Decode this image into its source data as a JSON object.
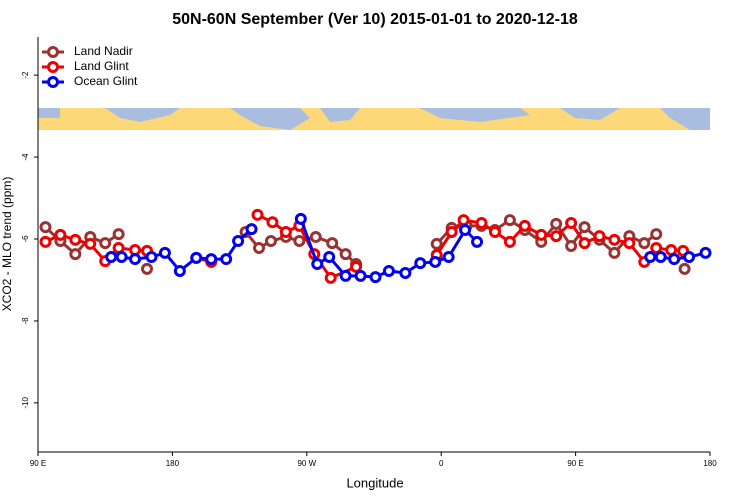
{
  "chart_data": {
    "type": "line",
    "title": "50N-60N September (Ver 10)   2015-01-01 to 2020-12-18",
    "x_label": "Longitude",
    "y_label": "XCO2 - MLO trend (ppm)",
    "xlim": [
      90,
      540
    ],
    "xticks": [
      {
        "value": 90,
        "label": "90 E"
      },
      180,
      {
        "value": 270,
        "label": "90 W"
      },
      {
        "value": 360,
        "label": "0"
      },
      {
        "value": 450,
        "label": "90 E"
      },
      {
        "value": 540,
        "label": "180"
      }
    ],
    "ylim": [
      -11.15,
      -1.07
    ],
    "yticks": [
      -2,
      -4,
      -6,
      -8,
      -10
    ],
    "legend": "top-left",
    "series": [
      {
        "name": "Land Nadir",
        "color": "#993333",
        "x": [
          95,
          105,
          115,
          125,
          135,
          144,
          null,
          163,
          null,
          229,
          238,
          246,
          256,
          265,
          276,
          287,
          296,
          303,
          null,
          357,
          367,
          377,
          387,
          396,
          406,
          416,
          427,
          437,
          447,
          456,
          466,
          476,
          486,
          496,
          504,
          null,
          523
        ],
        "values": [
          -5.71,
          -6.05,
          -6.37,
          -5.95,
          -6.1,
          -5.88,
          null,
          -6.73,
          null,
          -5.83,
          -6.22,
          -6.05,
          -5.95,
          -6.05,
          -5.95,
          -6.1,
          -6.37,
          -6.61,
          null,
          -6.12,
          -5.73,
          -5.68,
          -5.68,
          -5.78,
          -5.54,
          -5.78,
          -6.07,
          -5.63,
          -6.17,
          -5.71,
          -6.02,
          -6.34,
          -5.93,
          -6.1,
          -5.88,
          null,
          -6.73
        ]
      },
      {
        "name": "Land Glint",
        "color": "#ee0000",
        "x": [
          95,
          105,
          115,
          125,
          135,
          144,
          155,
          163,
          null,
          196,
          206,
          null,
          237,
          247,
          256,
          265,
          275,
          286,
          303,
          null,
          357,
          367,
          375,
          387,
          396,
          406,
          416,
          427,
          437,
          447,
          456,
          466,
          476,
          486,
          496,
          504,
          514,
          522
        ],
        "values": [
          -6.07,
          -5.9,
          -6.02,
          -6.12,
          -6.54,
          -6.22,
          -6.27,
          -6.29,
          null,
          -6.46,
          -6.56,
          null,
          -5.41,
          -5.59,
          -5.83,
          -5.68,
          -6.37,
          -6.95,
          -6.68,
          null,
          -6.39,
          -5.83,
          -5.54,
          -5.61,
          -5.83,
          -6.07,
          -5.68,
          -5.9,
          -5.93,
          -5.61,
          -6.1,
          -5.93,
          -6.02,
          -6.1,
          -6.56,
          -6.22,
          -6.27,
          -6.29
        ]
      },
      {
        "name": "Ocean Glint",
        "color": "#0000ee",
        "x": [
          139,
          146,
          155,
          166,
          175,
          185,
          196,
          206,
          216,
          224,
          233,
          null,
          266,
          277,
          285,
          296,
          306,
          316,
          325,
          336,
          346,
          356,
          365,
          376,
          384,
          null,
          500,
          507,
          516,
          526,
          537
        ],
        "values": [
          -6.44,
          -6.44,
          -6.49,
          -6.44,
          -6.34,
          -6.78,
          -6.46,
          -6.49,
          -6.49,
          -6.05,
          -5.76,
          null,
          -5.51,
          -6.61,
          -6.44,
          -6.9,
          -6.9,
          -6.93,
          -6.78,
          -6.83,
          -6.59,
          -6.56,
          -6.44,
          -5.78,
          -6.07,
          null,
          -6.44,
          -6.44,
          -6.49,
          -6.44,
          -6.34
        ]
      }
    ]
  }
}
